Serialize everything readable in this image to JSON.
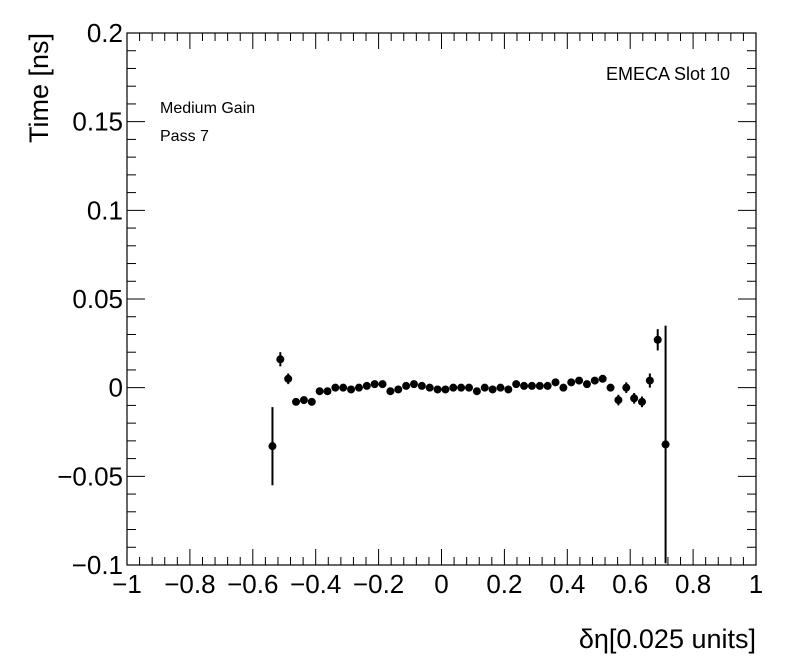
{
  "chart_data": {
    "type": "scatter",
    "xlabel": "δη[0.025 units]",
    "ylabel": "Time [ns]",
    "xlim": [
      -1,
      1
    ],
    "ylim": [
      -0.1,
      0.2
    ],
    "xticks": [
      "−1",
      "−0.8",
      "−0.6",
      "−0.4",
      "−0.2",
      "0",
      "0.2",
      "0.4",
      "0.6",
      "0.8",
      "1"
    ],
    "yticks": [
      "−0.1",
      "−0.05",
      "0",
      "0.05",
      "0.1",
      "0.15",
      "0.2"
    ],
    "annotations": {
      "gain": "Medium Gain",
      "pass": "Pass 7",
      "slot": "EMECA Slot 10"
    },
    "grid": false,
    "marker_color": "#000000",
    "points": [
      {
        "x": -0.5375,
        "y": -0.033,
        "err": 0.022
      },
      {
        "x": -0.5125,
        "y": 0.016,
        "err": 0.004
      },
      {
        "x": -0.4875,
        "y": 0.005,
        "err": 0.003
      },
      {
        "x": -0.4625,
        "y": -0.008,
        "err": 0.002
      },
      {
        "x": -0.4375,
        "y": -0.007,
        "err": 0.002
      },
      {
        "x": -0.4125,
        "y": -0.008,
        "err": 0.002
      },
      {
        "x": -0.3875,
        "y": -0.002,
        "err": 0.002
      },
      {
        "x": -0.3625,
        "y": -0.002,
        "err": 0.002
      },
      {
        "x": -0.3375,
        "y": 0.0,
        "err": 0.002
      },
      {
        "x": -0.3125,
        "y": 0.0,
        "err": 0.002
      },
      {
        "x": -0.2875,
        "y": -0.001,
        "err": 0.002
      },
      {
        "x": -0.2625,
        "y": 0.0,
        "err": 0.002
      },
      {
        "x": -0.2375,
        "y": 0.001,
        "err": 0.002
      },
      {
        "x": -0.2125,
        "y": 0.002,
        "err": 0.002
      },
      {
        "x": -0.1875,
        "y": 0.002,
        "err": 0.002
      },
      {
        "x": -0.1625,
        "y": -0.002,
        "err": 0.002
      },
      {
        "x": -0.1375,
        "y": -0.001,
        "err": 0.002
      },
      {
        "x": -0.1125,
        "y": 0.001,
        "err": 0.002
      },
      {
        "x": -0.0875,
        "y": 0.002,
        "err": 0.002
      },
      {
        "x": -0.0625,
        "y": 0.001,
        "err": 0.002
      },
      {
        "x": -0.0375,
        "y": 0.0,
        "err": 0.002
      },
      {
        "x": -0.0125,
        "y": -0.001,
        "err": 0.002
      },
      {
        "x": 0.0125,
        "y": -0.001,
        "err": 0.002
      },
      {
        "x": 0.0375,
        "y": 0.0,
        "err": 0.002
      },
      {
        "x": 0.0625,
        "y": 0.0,
        "err": 0.002
      },
      {
        "x": 0.0875,
        "y": 0.0,
        "err": 0.002
      },
      {
        "x": 0.1125,
        "y": -0.002,
        "err": 0.002
      },
      {
        "x": 0.1375,
        "y": 0.0,
        "err": 0.002
      },
      {
        "x": 0.1625,
        "y": -0.001,
        "err": 0.002
      },
      {
        "x": 0.1875,
        "y": 0.0,
        "err": 0.002
      },
      {
        "x": 0.2125,
        "y": -0.001,
        "err": 0.002
      },
      {
        "x": 0.2375,
        "y": 0.002,
        "err": 0.002
      },
      {
        "x": 0.2625,
        "y": 0.001,
        "err": 0.002
      },
      {
        "x": 0.2875,
        "y": 0.001,
        "err": 0.002
      },
      {
        "x": 0.3125,
        "y": 0.001,
        "err": 0.002
      },
      {
        "x": 0.3375,
        "y": 0.001,
        "err": 0.002
      },
      {
        "x": 0.3625,
        "y": 0.003,
        "err": 0.002
      },
      {
        "x": 0.3875,
        "y": 0.0,
        "err": 0.002
      },
      {
        "x": 0.4125,
        "y": 0.003,
        "err": 0.002
      },
      {
        "x": 0.4375,
        "y": 0.004,
        "err": 0.002
      },
      {
        "x": 0.4625,
        "y": 0.002,
        "err": 0.002
      },
      {
        "x": 0.4875,
        "y": 0.004,
        "err": 0.002
      },
      {
        "x": 0.5125,
        "y": 0.005,
        "err": 0.002
      },
      {
        "x": 0.5375,
        "y": 0.0,
        "err": 0.002
      },
      {
        "x": 0.5625,
        "y": -0.007,
        "err": 0.003
      },
      {
        "x": 0.5875,
        "y": 0.0,
        "err": 0.003
      },
      {
        "x": 0.6125,
        "y": -0.006,
        "err": 0.003
      },
      {
        "x": 0.6375,
        "y": -0.008,
        "err": 0.003
      },
      {
        "x": 0.6625,
        "y": 0.004,
        "err": 0.004
      },
      {
        "x": 0.6875,
        "y": 0.027,
        "err": 0.006
      },
      {
        "x": 0.7125,
        "y": -0.032,
        "err": 0.067
      }
    ]
  }
}
